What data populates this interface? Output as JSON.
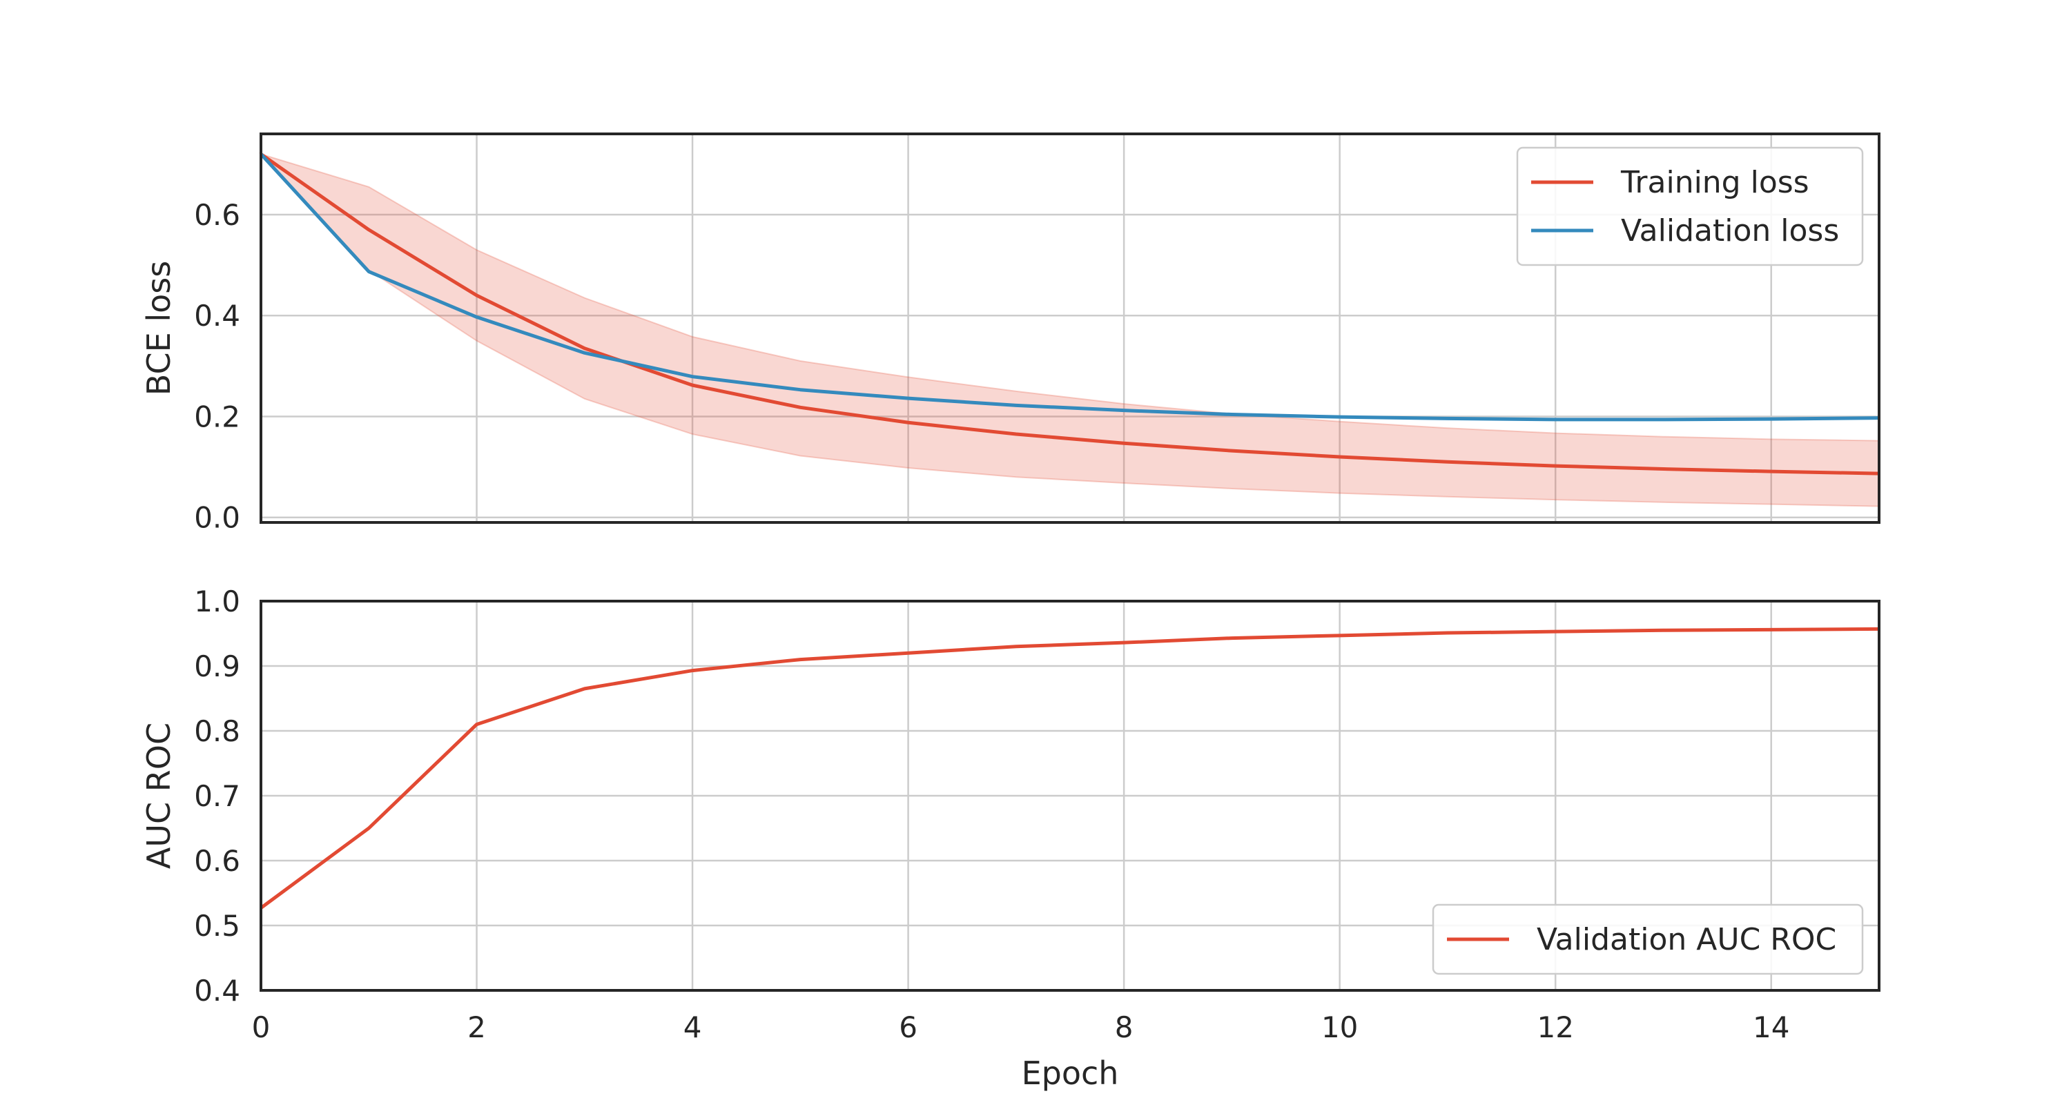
{
  "chart_data": [
    {
      "type": "line",
      "title": "",
      "xlabel": "",
      "ylabel": "BCE loss",
      "xlim": [
        0,
        15
      ],
      "ylim": [
        -0.01,
        0.76
      ],
      "x_ticks": [
        "0",
        "2",
        "4",
        "6",
        "8",
        "10",
        "12",
        "14"
      ],
      "y_ticks": [
        "0.0",
        "0.2",
        "0.4",
        "0.6"
      ],
      "grid": true,
      "legend_position": "top-right",
      "x": [
        0,
        1,
        2,
        3,
        4,
        5,
        6,
        7,
        8,
        9,
        10,
        11,
        12,
        13,
        14,
        15
      ],
      "series": [
        {
          "name": "Training loss",
          "color": "#e24a33",
          "values": [
            0.72,
            0.57,
            0.44,
            0.335,
            0.262,
            0.218,
            0.188,
            0.165,
            0.147,
            0.132,
            0.12,
            0.11,
            0.102,
            0.096,
            0.091,
            0.087
          ],
          "band_lower": [
            0.72,
            0.49,
            0.35,
            0.235,
            0.165,
            0.122,
            0.098,
            0.08,
            0.068,
            0.057,
            0.048,
            0.041,
            0.035,
            0.03,
            0.026,
            0.022
          ],
          "band_upper": [
            0.72,
            0.655,
            0.53,
            0.435,
            0.358,
            0.31,
            0.278,
            0.25,
            0.225,
            0.205,
            0.19,
            0.177,
            0.167,
            0.16,
            0.155,
            0.152
          ]
        },
        {
          "name": "Validation loss",
          "color": "#348abd",
          "values": [
            0.72,
            0.487,
            0.397,
            0.326,
            0.279,
            0.253,
            0.236,
            0.222,
            0.212,
            0.204,
            0.199,
            0.196,
            0.194,
            0.194,
            0.195,
            0.197
          ]
        }
      ]
    },
    {
      "type": "line",
      "title": "",
      "xlabel": "Epoch",
      "ylabel": "AUC ROC",
      "xlim": [
        0,
        15
      ],
      "ylim": [
        0.4,
        1.0
      ],
      "x_ticks": [
        "0",
        "2",
        "4",
        "6",
        "8",
        "10",
        "12",
        "14"
      ],
      "y_ticks": [
        "0.4",
        "0.5",
        "0.6",
        "0.7",
        "0.8",
        "0.9",
        "1.0"
      ],
      "grid": true,
      "legend_position": "bottom-right",
      "x": [
        0,
        1,
        2,
        3,
        4,
        5,
        6,
        7,
        8,
        9,
        10,
        11,
        12,
        13,
        14,
        15
      ],
      "series": [
        {
          "name": "Validation AUC ROC",
          "color": "#e24a33",
          "values": [
            0.527,
            0.65,
            0.81,
            0.865,
            0.893,
            0.91,
            0.92,
            0.93,
            0.936,
            0.943,
            0.947,
            0.951,
            0.953,
            0.955,
            0.956,
            0.957
          ]
        }
      ]
    }
  ]
}
